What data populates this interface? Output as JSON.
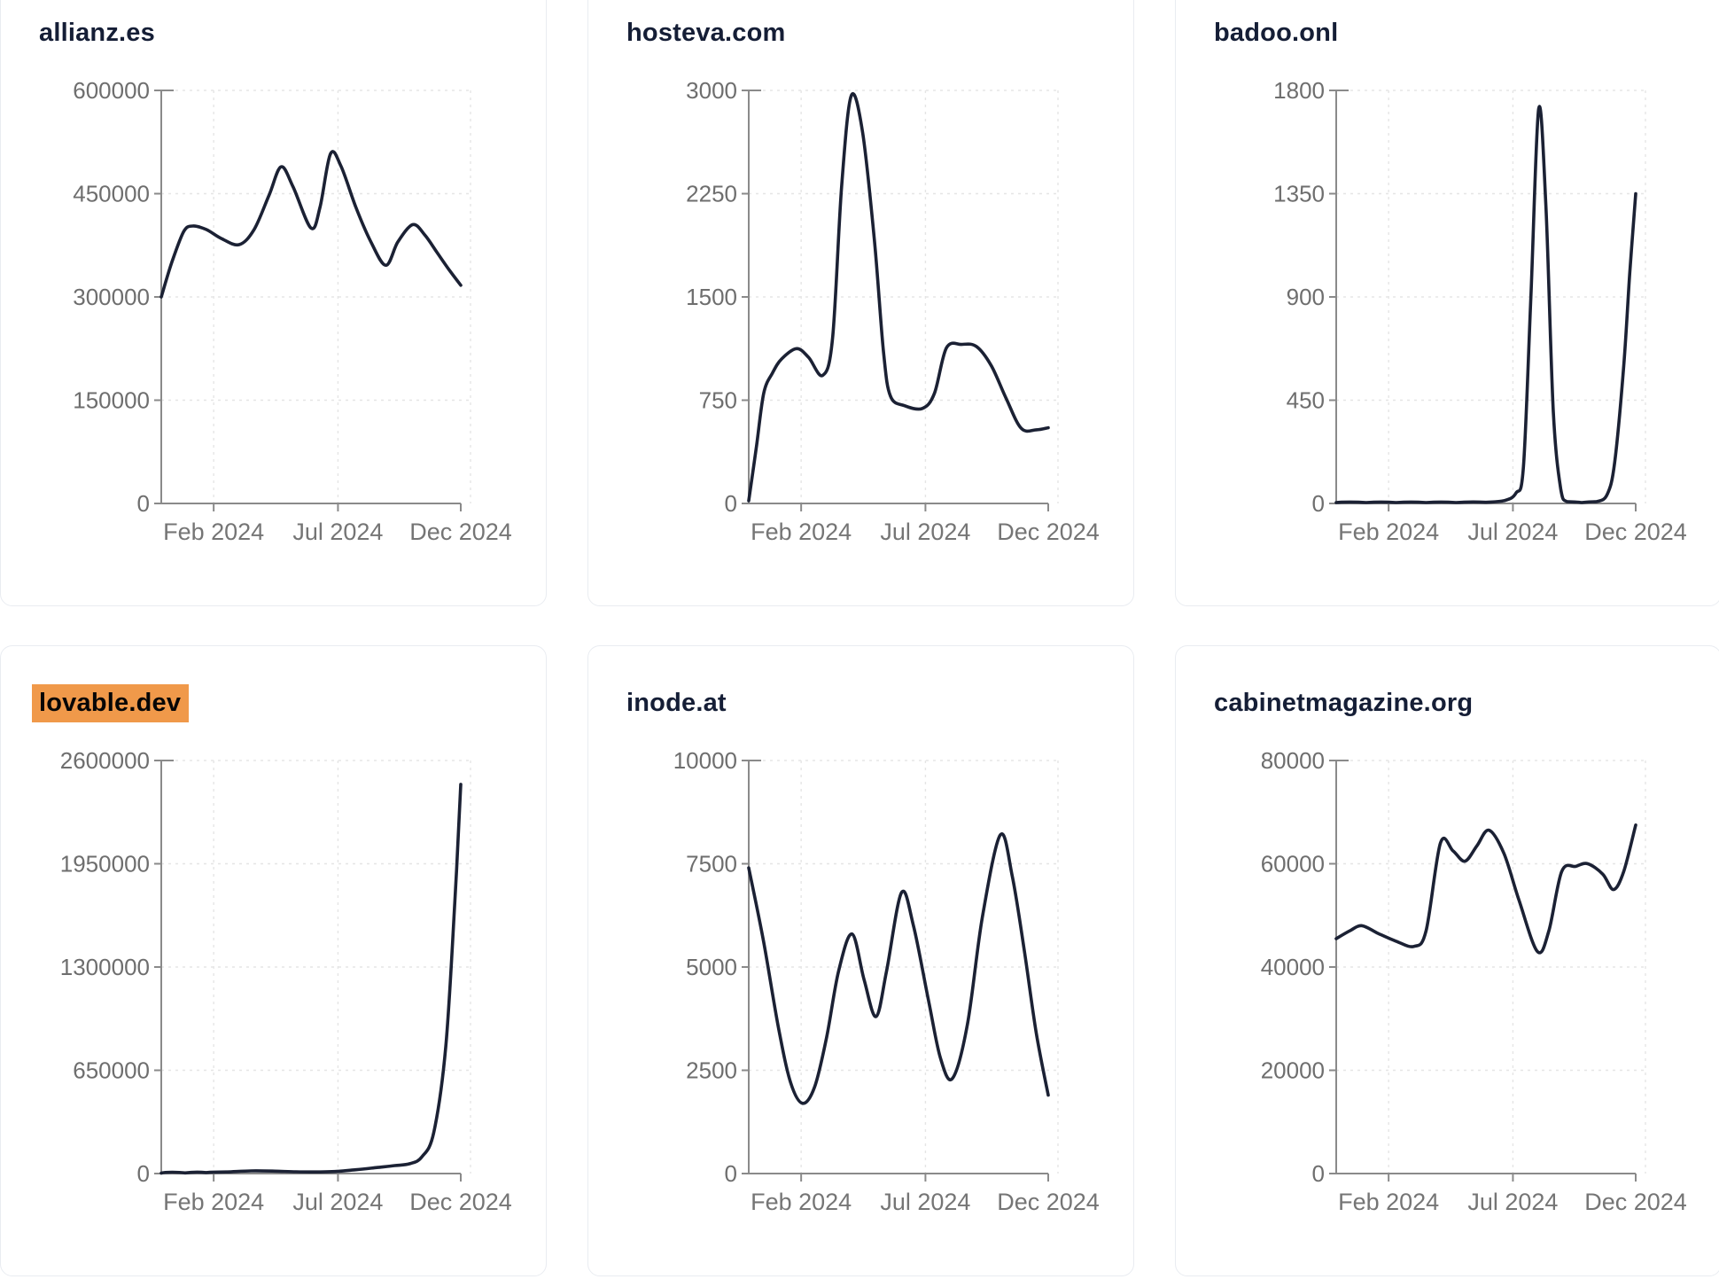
{
  "style": {
    "background": "#ffffff",
    "line_color": "#1b2134",
    "title_color": "#151e36",
    "highlight_color": "#f0994a",
    "highlight_text_color": "#060606",
    "axis_color": "#8a8a8a",
    "grid_color": "#e5e5e5",
    "tick_label_color": "#6e6e6e",
    "card_border_color": "#e9ecf1"
  },
  "chart_data": [
    {
      "type": "line",
      "title": "allianz.es",
      "title_highlighted": false,
      "grid": true,
      "ylim": [
        0,
        600000
      ],
      "y_ticks": [
        {
          "label": "0",
          "value": 0
        },
        {
          "label": "150000",
          "value": 150000
        },
        {
          "label": "300000",
          "value": 300000
        },
        {
          "label": "450000",
          "value": 450000
        },
        {
          "label": "600000",
          "value": 600000
        }
      ],
      "x_ticks": [
        {
          "label": "Feb 2024",
          "t": 0.175
        },
        {
          "label": "Jul 2024",
          "t": 0.59
        },
        {
          "label": "Dec 2024",
          "t": 1.0
        }
      ],
      "points": [
        [
          0.0,
          300000
        ],
        [
          0.035,
          350000
        ],
        [
          0.075,
          395000
        ],
        [
          0.105,
          403000
        ],
        [
          0.15,
          398000
        ],
        [
          0.2,
          385000
        ],
        [
          0.26,
          376000
        ],
        [
          0.31,
          398000
        ],
        [
          0.36,
          448000
        ],
        [
          0.4,
          489000
        ],
        [
          0.44,
          460000
        ],
        [
          0.5,
          400000
        ],
        [
          0.53,
          430000
        ],
        [
          0.565,
          508000
        ],
        [
          0.6,
          490000
        ],
        [
          0.65,
          430000
        ],
        [
          0.7,
          380000
        ],
        [
          0.75,
          346000
        ],
        [
          0.79,
          380000
        ],
        [
          0.84,
          405000
        ],
        [
          0.88,
          390000
        ],
        [
          0.92,
          365000
        ],
        [
          0.96,
          340000
        ],
        [
          1.0,
          317000
        ]
      ]
    },
    {
      "type": "line",
      "title": "hosteva.com",
      "title_highlighted": false,
      "grid": true,
      "ylim": [
        0,
        3000
      ],
      "y_ticks": [
        {
          "label": "0",
          "value": 0
        },
        {
          "label": "750",
          "value": 750
        },
        {
          "label": "1500",
          "value": 1500
        },
        {
          "label": "2250",
          "value": 2250
        },
        {
          "label": "3000",
          "value": 3000
        }
      ],
      "x_ticks": [
        {
          "label": "Feb 2024",
          "t": 0.175
        },
        {
          "label": "Jul 2024",
          "t": 0.59
        },
        {
          "label": "Dec 2024",
          "t": 1.0
        }
      ],
      "points": [
        [
          0.0,
          20
        ],
        [
          0.025,
          400
        ],
        [
          0.05,
          800
        ],
        [
          0.08,
          950
        ],
        [
          0.11,
          1050
        ],
        [
          0.16,
          1125
        ],
        [
          0.2,
          1060
        ],
        [
          0.247,
          930
        ],
        [
          0.28,
          1200
        ],
        [
          0.31,
          2300
        ],
        [
          0.342,
          2960
        ],
        [
          0.38,
          2700
        ],
        [
          0.42,
          1900
        ],
        [
          0.45,
          1100
        ],
        [
          0.473,
          780
        ],
        [
          0.52,
          710
        ],
        [
          0.58,
          690
        ],
        [
          0.62,
          800
        ],
        [
          0.66,
          1130
        ],
        [
          0.71,
          1155
        ],
        [
          0.76,
          1140
        ],
        [
          0.81,
          1000
        ],
        [
          0.86,
          760
        ],
        [
          0.91,
          545
        ],
        [
          0.96,
          535
        ],
        [
          1.0,
          550
        ]
      ]
    },
    {
      "type": "line",
      "title": "badoo.onl",
      "title_highlighted": false,
      "grid": true,
      "ylim": [
        0,
        1800
      ],
      "y_ticks": [
        {
          "label": "0",
          "value": 0
        },
        {
          "label": "450",
          "value": 450
        },
        {
          "label": "900",
          "value": 900
        },
        {
          "label": "1350",
          "value": 1350
        },
        {
          "label": "1800",
          "value": 1800
        }
      ],
      "x_ticks": [
        {
          "label": "Feb 2024",
          "t": 0.175
        },
        {
          "label": "Jul 2024",
          "t": 0.59
        },
        {
          "label": "Dec 2024",
          "t": 1.0
        }
      ],
      "points": [
        [
          0.0,
          4
        ],
        [
          0.1,
          4
        ],
        [
          0.2,
          4
        ],
        [
          0.3,
          4
        ],
        [
          0.4,
          4
        ],
        [
          0.5,
          5
        ],
        [
          0.56,
          12
        ],
        [
          0.6,
          45
        ],
        [
          0.625,
          160
        ],
        [
          0.65,
          900
        ],
        [
          0.676,
          1720
        ],
        [
          0.7,
          1300
        ],
        [
          0.725,
          400
        ],
        [
          0.75,
          60
        ],
        [
          0.77,
          8
        ],
        [
          0.82,
          4
        ],
        [
          0.87,
          8
        ],
        [
          0.905,
          40
        ],
        [
          0.93,
          180
        ],
        [
          0.96,
          600
        ],
        [
          0.98,
          1000
        ],
        [
          1.0,
          1350
        ]
      ]
    },
    {
      "type": "line",
      "title": "lovable.dev",
      "title_highlighted": true,
      "grid": true,
      "ylim": [
        0,
        2600000
      ],
      "y_ticks": [
        {
          "label": "0",
          "value": 0
        },
        {
          "label": "650000",
          "value": 650000
        },
        {
          "label": "1300000",
          "value": 1300000
        },
        {
          "label": "1950000",
          "value": 1950000
        },
        {
          "label": "2600000",
          "value": 2600000
        }
      ],
      "x_ticks": [
        {
          "label": "Feb 2024",
          "t": 0.175
        },
        {
          "label": "Jul 2024",
          "t": 0.59
        },
        {
          "label": "Dec 2024",
          "t": 1.0
        }
      ],
      "points": [
        [
          0.0,
          3000
        ],
        [
          0.08,
          4000
        ],
        [
          0.15,
          6000
        ],
        [
          0.22,
          10000
        ],
        [
          0.3,
          17000
        ],
        [
          0.38,
          15000
        ],
        [
          0.45,
          11000
        ],
        [
          0.52,
          10000
        ],
        [
          0.58,
          13000
        ],
        [
          0.65,
          24000
        ],
        [
          0.72,
          38000
        ],
        [
          0.78,
          50000
        ],
        [
          0.83,
          62000
        ],
        [
          0.87,
          105000
        ],
        [
          0.91,
          260000
        ],
        [
          0.95,
          800000
        ],
        [
          0.98,
          1700000
        ],
        [
          1.0,
          2450000
        ]
      ]
    },
    {
      "type": "line",
      "title": "inode.at",
      "title_highlighted": false,
      "grid": true,
      "ylim": [
        0,
        10000
      ],
      "y_ticks": [
        {
          "label": "0",
          "value": 0
        },
        {
          "label": "2500",
          "value": 2500
        },
        {
          "label": "5000",
          "value": 5000
        },
        {
          "label": "7500",
          "value": 7500
        },
        {
          "label": "10000",
          "value": 10000
        }
      ],
      "x_ticks": [
        {
          "label": "Feb 2024",
          "t": 0.175
        },
        {
          "label": "Jul 2024",
          "t": 0.59
        },
        {
          "label": "Dec 2024",
          "t": 1.0
        }
      ],
      "points": [
        [
          0.0,
          7400
        ],
        [
          0.05,
          5600
        ],
        [
          0.1,
          3500
        ],
        [
          0.14,
          2200
        ],
        [
          0.18,
          1700
        ],
        [
          0.22,
          2100
        ],
        [
          0.26,
          3300
        ],
        [
          0.3,
          4900
        ],
        [
          0.345,
          5800
        ],
        [
          0.385,
          4700
        ],
        [
          0.425,
          3800
        ],
        [
          0.46,
          4900
        ],
        [
          0.51,
          6800
        ],
        [
          0.55,
          6000
        ],
        [
          0.6,
          4200
        ],
        [
          0.64,
          2800
        ],
        [
          0.68,
          2300
        ],
        [
          0.73,
          3600
        ],
        [
          0.78,
          6200
        ],
        [
          0.84,
          8200
        ],
        [
          0.88,
          7200
        ],
        [
          0.92,
          5400
        ],
        [
          0.96,
          3400
        ],
        [
          1.0,
          1900
        ]
      ]
    },
    {
      "type": "line",
      "title": "cabinetmagazine.org",
      "title_highlighted": false,
      "grid": true,
      "ylim": [
        0,
        80000
      ],
      "y_ticks": [
        {
          "label": "0",
          "value": 0
        },
        {
          "label": "20000",
          "value": 20000
        },
        {
          "label": "40000",
          "value": 40000
        },
        {
          "label": "60000",
          "value": 60000
        },
        {
          "label": "80000",
          "value": 80000
        }
      ],
      "x_ticks": [
        {
          "label": "Feb 2024",
          "t": 0.175
        },
        {
          "label": "Jul 2024",
          "t": 0.59
        },
        {
          "label": "Dec 2024",
          "t": 1.0
        }
      ],
      "points": [
        [
          0.0,
          45500
        ],
        [
          0.045,
          47000
        ],
        [
          0.086,
          48000
        ],
        [
          0.14,
          46500
        ],
        [
          0.2,
          45000
        ],
        [
          0.26,
          44000
        ],
        [
          0.3,
          47000
        ],
        [
          0.348,
          64000
        ],
        [
          0.39,
          62500
        ],
        [
          0.43,
          60500
        ],
        [
          0.47,
          63500
        ],
        [
          0.51,
          66500
        ],
        [
          0.56,
          62000
        ],
        [
          0.61,
          53000
        ],
        [
          0.672,
          43000
        ],
        [
          0.71,
          47000
        ],
        [
          0.753,
          58500
        ],
        [
          0.8,
          59500
        ],
        [
          0.84,
          60000
        ],
        [
          0.89,
          58000
        ],
        [
          0.926,
          55000
        ],
        [
          0.96,
          58500
        ],
        [
          1.0,
          67500
        ]
      ]
    }
  ]
}
